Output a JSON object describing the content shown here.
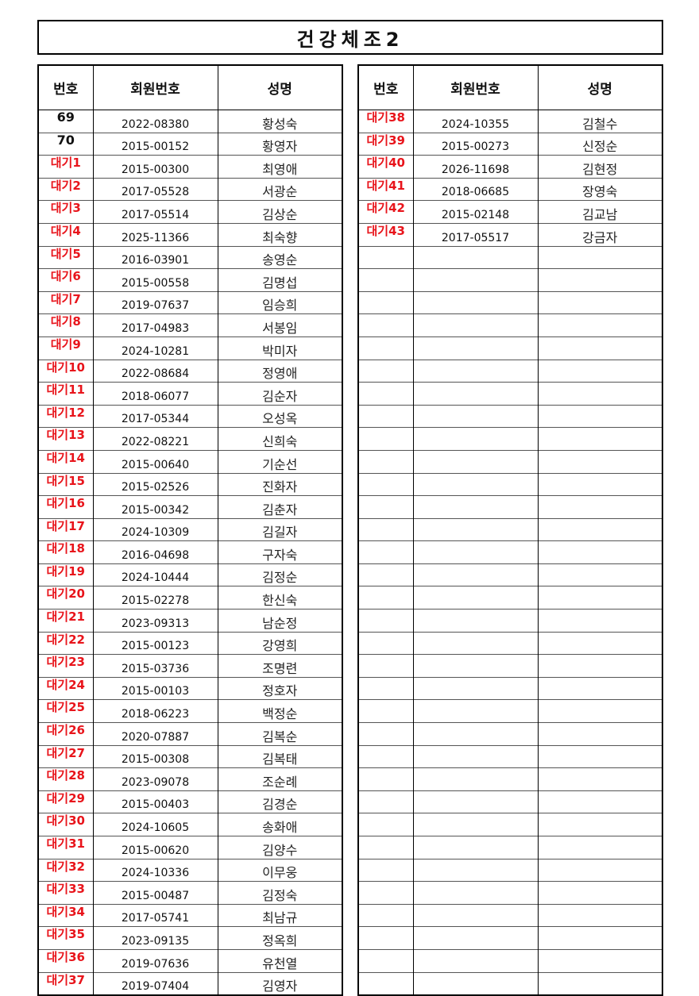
{
  "title": "건강체조2",
  "headers": {
    "number": "번호",
    "member_id": "회원번호",
    "name": "성명"
  },
  "colors": {
    "waiting": "#e8141b",
    "text": "#111111"
  },
  "left_rows": [
    {
      "number": "69",
      "member_id": "2022-08380",
      "name": "황성숙",
      "waiting": false
    },
    {
      "number": "70",
      "member_id": "2015-00152",
      "name": "황영자",
      "waiting": false
    },
    {
      "number": "대기1",
      "member_id": "2015-00300",
      "name": "최영애",
      "waiting": true
    },
    {
      "number": "대기2",
      "member_id": "2017-05528",
      "name": "서광순",
      "waiting": true
    },
    {
      "number": "대기3",
      "member_id": "2017-05514",
      "name": "김상순",
      "waiting": true
    },
    {
      "number": "대기4",
      "member_id": "2025-11366",
      "name": "최숙향",
      "waiting": true
    },
    {
      "number": "대기5",
      "member_id": "2016-03901",
      "name": "송영순",
      "waiting": true
    },
    {
      "number": "대기6",
      "member_id": "2015-00558",
      "name": "김명섭",
      "waiting": true
    },
    {
      "number": "대기7",
      "member_id": "2019-07637",
      "name": "임승희",
      "waiting": true
    },
    {
      "number": "대기8",
      "member_id": "2017-04983",
      "name": "서봉임",
      "waiting": true
    },
    {
      "number": "대기9",
      "member_id": "2024-10281",
      "name": "박미자",
      "waiting": true
    },
    {
      "number": "대기10",
      "member_id": "2022-08684",
      "name": "정영애",
      "waiting": true
    },
    {
      "number": "대기11",
      "member_id": "2018-06077",
      "name": "김순자",
      "waiting": true
    },
    {
      "number": "대기12",
      "member_id": "2017-05344",
      "name": "오성옥",
      "waiting": true
    },
    {
      "number": "대기13",
      "member_id": "2022-08221",
      "name": "신희숙",
      "waiting": true
    },
    {
      "number": "대기14",
      "member_id": "2015-00640",
      "name": "기순선",
      "waiting": true
    },
    {
      "number": "대기15",
      "member_id": "2015-02526",
      "name": "진화자",
      "waiting": true
    },
    {
      "number": "대기16",
      "member_id": "2015-00342",
      "name": "김춘자",
      "waiting": true
    },
    {
      "number": "대기17",
      "member_id": "2024-10309",
      "name": "김길자",
      "waiting": true
    },
    {
      "number": "대기18",
      "member_id": "2016-04698",
      "name": "구자숙",
      "waiting": true
    },
    {
      "number": "대기19",
      "member_id": "2024-10444",
      "name": "김정순",
      "waiting": true
    },
    {
      "number": "대기20",
      "member_id": "2015-02278",
      "name": "한신숙",
      "waiting": true
    },
    {
      "number": "대기21",
      "member_id": "2023-09313",
      "name": "남순정",
      "waiting": true
    },
    {
      "number": "대기22",
      "member_id": "2015-00123",
      "name": "강영희",
      "waiting": true
    },
    {
      "number": "대기23",
      "member_id": "2015-03736",
      "name": "조명련",
      "waiting": true
    },
    {
      "number": "대기24",
      "member_id": "2015-00103",
      "name": "정호자",
      "waiting": true
    },
    {
      "number": "대기25",
      "member_id": "2018-06223",
      "name": "백정순",
      "waiting": true
    },
    {
      "number": "대기26",
      "member_id": "2020-07887",
      "name": "김복순",
      "waiting": true
    },
    {
      "number": "대기27",
      "member_id": "2015-00308",
      "name": "김복태",
      "waiting": true
    },
    {
      "number": "대기28",
      "member_id": "2023-09078",
      "name": "조순례",
      "waiting": true
    },
    {
      "number": "대기29",
      "member_id": "2015-00403",
      "name": "김경순",
      "waiting": true
    },
    {
      "number": "대기30",
      "member_id": "2024-10605",
      "name": "송화애",
      "waiting": true
    },
    {
      "number": "대기31",
      "member_id": "2015-00620",
      "name": "김양수",
      "waiting": true
    },
    {
      "number": "대기32",
      "member_id": "2024-10336",
      "name": "이무웅",
      "waiting": true
    },
    {
      "number": "대기33",
      "member_id": "2015-00487",
      "name": "김정숙",
      "waiting": true
    },
    {
      "number": "대기34",
      "member_id": "2017-05741",
      "name": "최남규",
      "waiting": true
    },
    {
      "number": "대기35",
      "member_id": "2023-09135",
      "name": "정옥희",
      "waiting": true
    },
    {
      "number": "대기36",
      "member_id": "2019-07636",
      "name": "유천열",
      "waiting": true
    },
    {
      "number": "대기37",
      "member_id": "2019-07404",
      "name": "김영자",
      "waiting": true
    }
  ],
  "right_rows": [
    {
      "number": "대기38",
      "member_id": "2024-10355",
      "name": "김철수",
      "waiting": true
    },
    {
      "number": "대기39",
      "member_id": "2015-00273",
      "name": "신정순",
      "waiting": true
    },
    {
      "number": "대기40",
      "member_id": "2026-11698",
      "name": "김현정",
      "waiting": true
    },
    {
      "number": "대기41",
      "member_id": "2018-06685",
      "name": "장영숙",
      "waiting": true
    },
    {
      "number": "대기42",
      "member_id": "2015-02148",
      "name": "김교남",
      "waiting": true
    },
    {
      "number": "대기43",
      "member_id": "2017-05517",
      "name": "강금자",
      "waiting": true
    }
  ]
}
